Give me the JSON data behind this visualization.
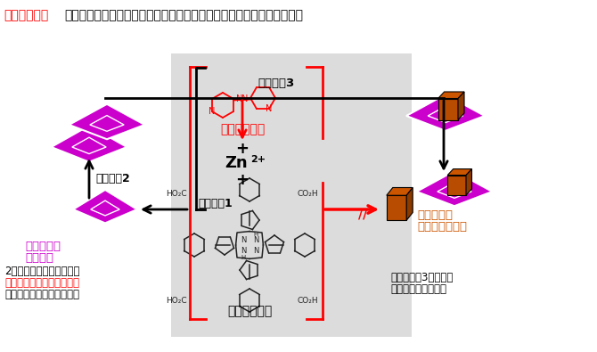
{
  "bg_color": "#ffffff",
  "panel_bg": "#dcdcdc",
  "pink_color": "#cc00cc",
  "orange_dark": "#8b3a00",
  "orange_mid": "#b84c00",
  "orange_light": "#cc5500",
  "red_color": "#ff0000",
  "black_color": "#000000",
  "title_red": "アゾピリジン",
  "title_black": "が取り込まれ、ピンク色の結晶の中央から新たに濃い赤色の結晶が成長",
  "stage1": "ステージ1",
  "stage2": "ステージ2",
  "stage3": "ステージ3",
  "azopyridine": "アゾピリジン",
  "porphyrin": "ポルフィリン",
  "zn2p": "Zn2+",
  "pink_label1": "ピンク色の",
  "pink_label2": "板状結晶",
  "dark_red_label1": "濃い赤色の",
  "dark_red_label2": "ブロック状結晶",
  "bottom_left1": "2成分結晶が形成される。",
  "bottom_left2": "アゾピリジンはピンク色の",
  "bottom_left3": "結晶には取り込まれない。",
  "bottom_right1": "最終的には3成分結晶",
  "bottom_right2": "だけが形成される。",
  "figsize": [
    6.7,
    3.95
  ],
  "dpi": 100
}
